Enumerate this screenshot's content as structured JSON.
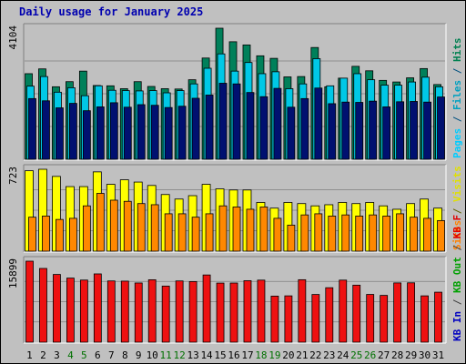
{
  "title": "Daily usage for January 2025",
  "panels": {
    "top": {
      "max_label": "4104",
      "legend": [
        {
          "text": "Pages",
          "color": "#00ccff"
        },
        {
          "text": "/",
          "color": "#005080"
        },
        {
          "text": "Files",
          "color": "#00a0c0"
        },
        {
          "text": "/",
          "color": "#005080"
        },
        {
          "text": "Hits",
          "color": "#008050"
        }
      ]
    },
    "middle": {
      "max_label": "723",
      "legend": [
        {
          "text": "Sites",
          "color": "#ff8000"
        },
        {
          "text": "/",
          "color": "#606000"
        },
        {
          "text": "Visits",
          "color": "#e0e000"
        }
      ]
    },
    "bottom": {
      "max_label": "15899",
      "legend": [
        {
          "text": "KB In",
          "color": "#0000c0"
        },
        {
          "text": "/",
          "color": "#404040"
        },
        {
          "text": "KB Out",
          "color": "#00a000"
        },
        {
          "text": "/",
          "color": "#404040"
        },
        {
          "text": "KB F",
          "color": "#e00000"
        }
      ]
    }
  },
  "colors": {
    "hits": "#00805a",
    "files": "#00c8e6",
    "pages": "#001070",
    "visits": "#ffff00",
    "sites": "#ff8800",
    "kbf": "#ee1111",
    "weekend_label": "#007000",
    "weekday_label": "#000000",
    "panel_bg": "#c0c0c0",
    "grid": "#808080"
  },
  "chart_data": [
    {
      "type": "bar",
      "title": "Daily usage for January 2025",
      "categories": [
        "1",
        "2",
        "3",
        "4",
        "5",
        "6",
        "7",
        "8",
        "9",
        "10",
        "11",
        "12",
        "13",
        "14",
        "15",
        "16",
        "17",
        "18",
        "19",
        "20",
        "21",
        "22",
        "23",
        "24",
        "25",
        "26",
        "27",
        "28",
        "29",
        "30",
        "31"
      ],
      "weekend_days": [
        "4",
        "5",
        "11",
        "12",
        "18",
        "19",
        "25",
        "26"
      ],
      "ylim": [
        0,
        4104
      ],
      "ylabel": "Pages / Files / Hits",
      "series": [
        {
          "name": "Hits",
          "values": [
            2680,
            2830,
            2270,
            2430,
            2760,
            2310,
            2300,
            2210,
            2430,
            2280,
            2210,
            2200,
            2490,
            3170,
            4104,
            3680,
            3580,
            3240,
            3160,
            2580,
            2590,
            3500,
            2270,
            2540,
            2910,
            2770,
            2470,
            2420,
            2550,
            2840,
            2340
          ]
        },
        {
          "name": "Files",
          "values": [
            2290,
            2590,
            2100,
            2240,
            1990,
            2300,
            2160,
            2150,
            2140,
            2150,
            2080,
            2150,
            2360,
            2850,
            3300,
            2760,
            3030,
            2680,
            2740,
            2210,
            2360,
            3150,
            2300,
            2540,
            2680,
            2490,
            2320,
            2320,
            2420,
            2570,
            2270
          ]
        },
        {
          "name": "Pages",
          "values": [
            1900,
            1830,
            1610,
            1750,
            1520,
            1640,
            1770,
            1630,
            1710,
            1690,
            1620,
            1660,
            1910,
            2010,
            2380,
            2360,
            2090,
            1960,
            2220,
            1630,
            1900,
            2230,
            1740,
            1790,
            1780,
            1820,
            1640,
            1800,
            1810,
            1790,
            1950
          ]
        }
      ]
    },
    {
      "type": "bar",
      "ylim": [
        0,
        723
      ],
      "ylabel": "Sites / Visits",
      "series": [
        {
          "name": "Visits",
          "values": [
            710,
            723,
            660,
            570,
            570,
            700,
            590,
            630,
            610,
            580,
            500,
            460,
            490,
            590,
            550,
            540,
            540,
            430,
            380,
            430,
            420,
            400,
            410,
            430,
            420,
            430,
            400,
            370,
            420,
            460,
            380
          ]
        },
        {
          "name": "Sites",
          "values": [
            300,
            310,
            280,
            290,
            400,
            510,
            450,
            440,
            420,
            410,
            330,
            330,
            300,
            330,
            400,
            390,
            370,
            390,
            290,
            230,
            320,
            330,
            310,
            320,
            310,
            320,
            310,
            330,
            300,
            290,
            270
          ]
        }
      ]
    },
    {
      "type": "bar",
      "ylim": [
        0,
        15899
      ],
      "ylabel": "KB F / KB Out / KB In",
      "series": [
        {
          "name": "KB F",
          "values": [
            15899,
            14470,
            13290,
            12580,
            12190,
            13400,
            12020,
            11980,
            11620,
            12250,
            11010,
            12020,
            11900,
            13190,
            11600,
            11610,
            12070,
            12180,
            9040,
            9090,
            12260,
            9360,
            10690,
            12180,
            11190,
            9370,
            9180,
            11630,
            11650,
            9090,
            9810
          ]
        }
      ]
    }
  ]
}
